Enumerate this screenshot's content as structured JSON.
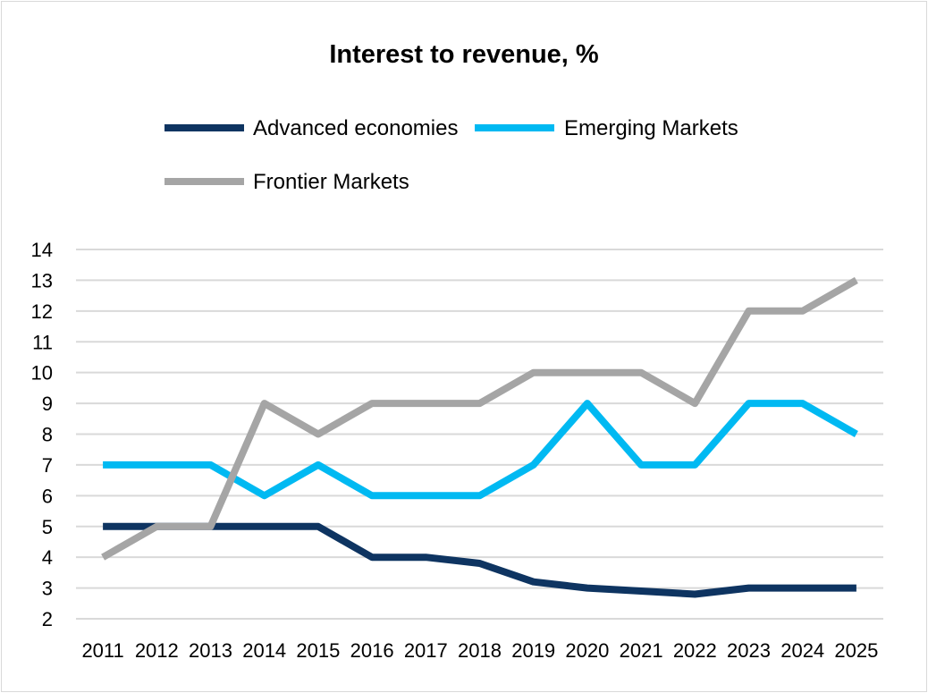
{
  "chart_data": {
    "type": "line",
    "title": "Interest to revenue, %",
    "xlabel": "",
    "ylabel": "",
    "categories": [
      "2011",
      "2012",
      "2013",
      "2014",
      "2015",
      "2016",
      "2017",
      "2018",
      "2019",
      "2020",
      "2021",
      "2022",
      "2023",
      "2024",
      "2025"
    ],
    "ylim": [
      2,
      14
    ],
    "yticks": [
      "2",
      "3",
      "4",
      "5",
      "6",
      "7",
      "8",
      "9",
      "10",
      "11",
      "12",
      "13",
      "14"
    ],
    "grid": true,
    "legend_position": "top",
    "series": [
      {
        "name": "Advanced economies",
        "color": "#0e3461",
        "values": [
          5,
          5,
          5,
          5,
          5,
          4,
          4,
          3.8,
          3.2,
          3.0,
          2.9,
          2.8,
          3.0,
          3.0,
          3.0
        ]
      },
      {
        "name": "Emerging Markets",
        "color": "#00b9f2",
        "values": [
          7,
          7,
          7,
          6,
          7,
          6,
          6,
          6,
          7,
          9,
          7,
          7,
          9,
          9,
          8
        ]
      },
      {
        "name": "Frontier Markets",
        "color": "#a5a5a5",
        "values": [
          4,
          5,
          5,
          9,
          8,
          9,
          9,
          9,
          10,
          10,
          10,
          9,
          12,
          12,
          13
        ]
      }
    ]
  }
}
